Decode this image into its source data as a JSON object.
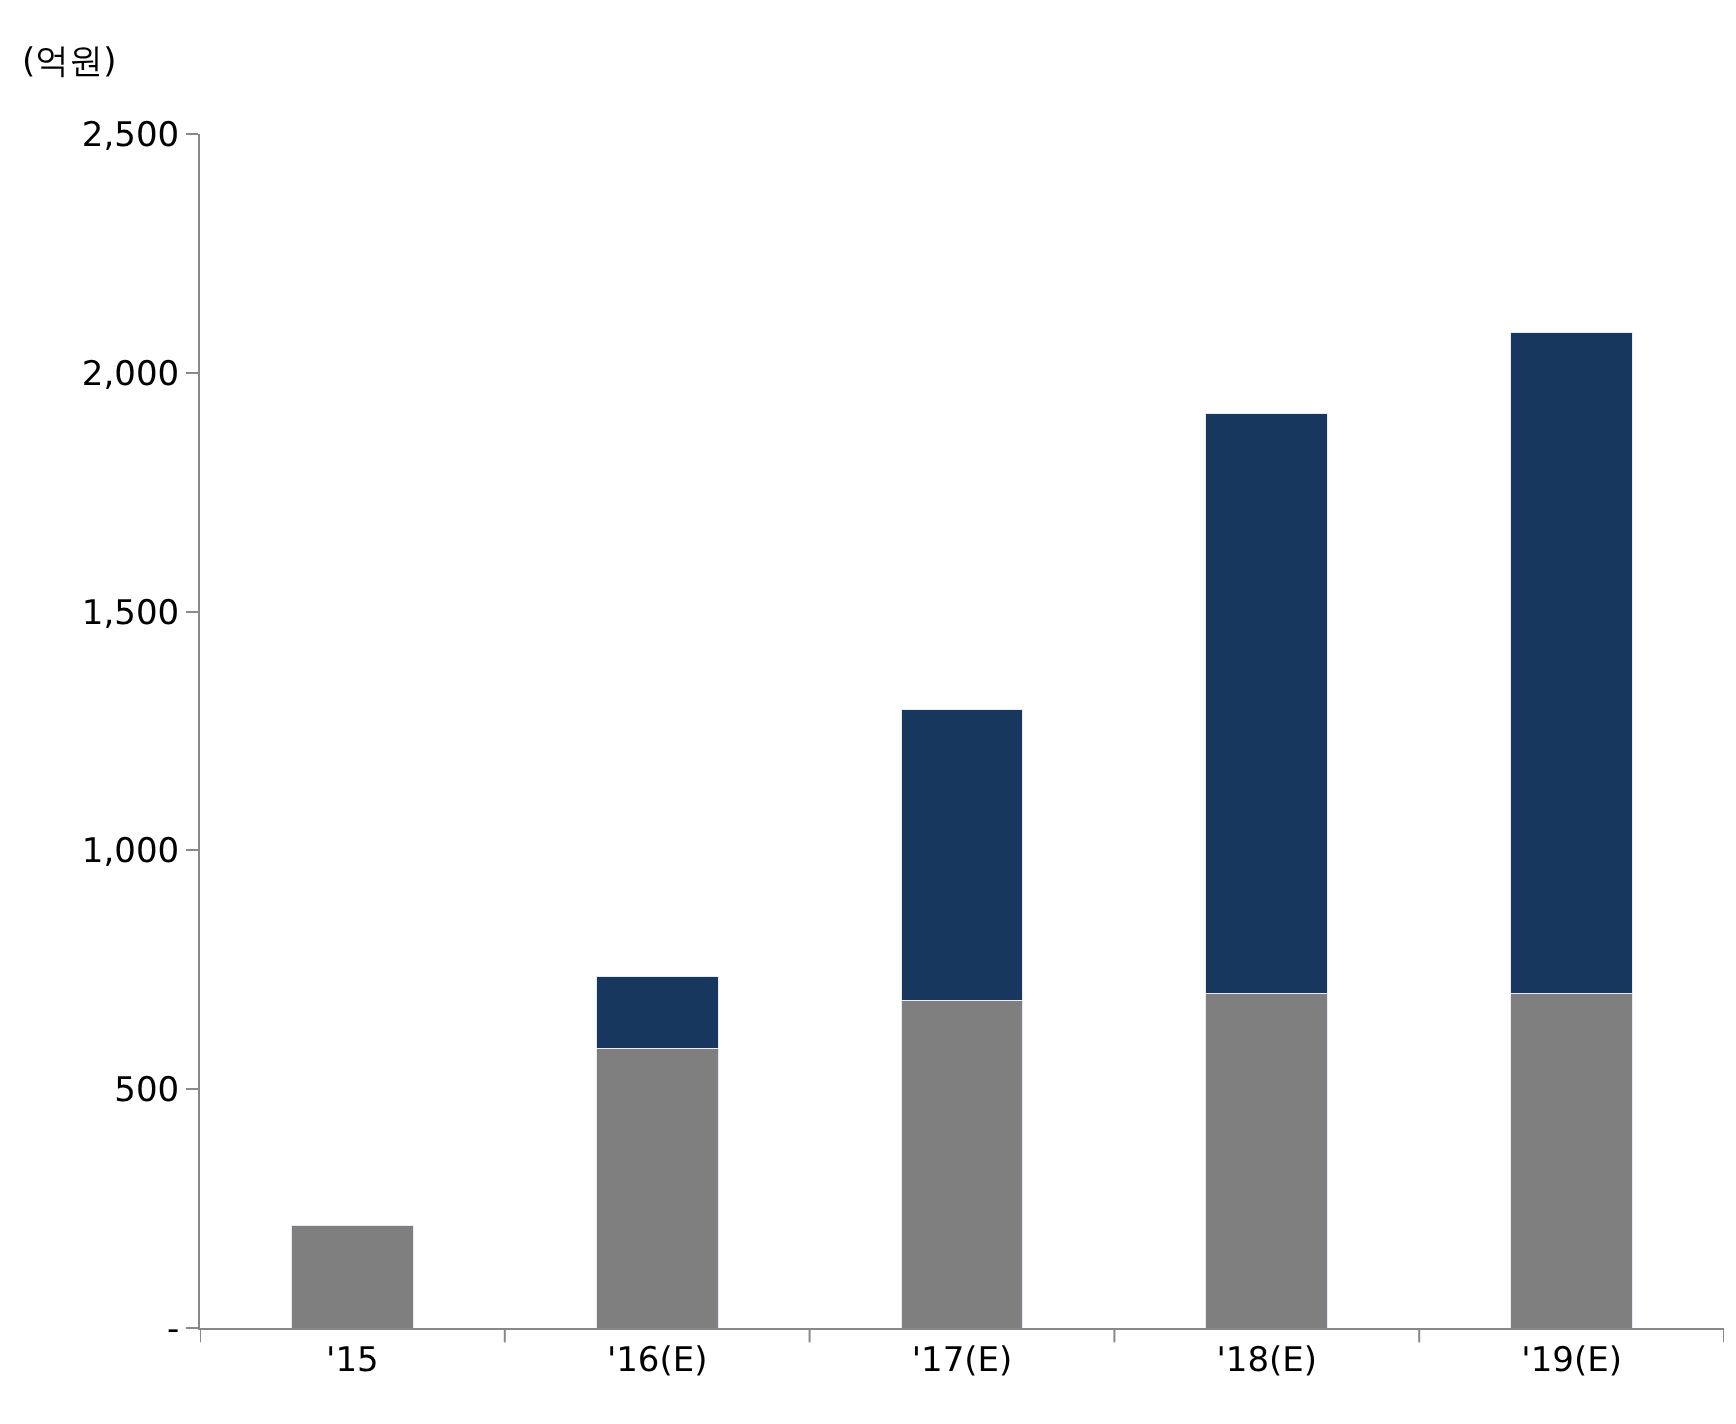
{
  "chart_data": {
    "type": "bar",
    "stacked": true,
    "ylabel": "(억원)",
    "categories": [
      "'15",
      "'16(E)",
      "'17(E)",
      "'18(E)",
      "'19(E)"
    ],
    "series": [
      {
        "color": "#7f7f7f",
        "values": [
          215,
          585,
          685,
          700,
          700
        ]
      },
      {
        "color": "#17375e",
        "values": [
          null,
          150,
          610,
          1215,
          1385
        ]
      }
    ],
    "ylim": [
      0,
      2500
    ],
    "yticks": [
      {
        "value": 0,
        "label": "-"
      },
      {
        "value": 500,
        "label": "500"
      },
      {
        "value": 1000,
        "label": "1,000"
      },
      {
        "value": 1500,
        "label": "1,500"
      },
      {
        "value": 2000,
        "label": "2,000"
      },
      {
        "value": 2500,
        "label": "2,500"
      }
    ]
  }
}
